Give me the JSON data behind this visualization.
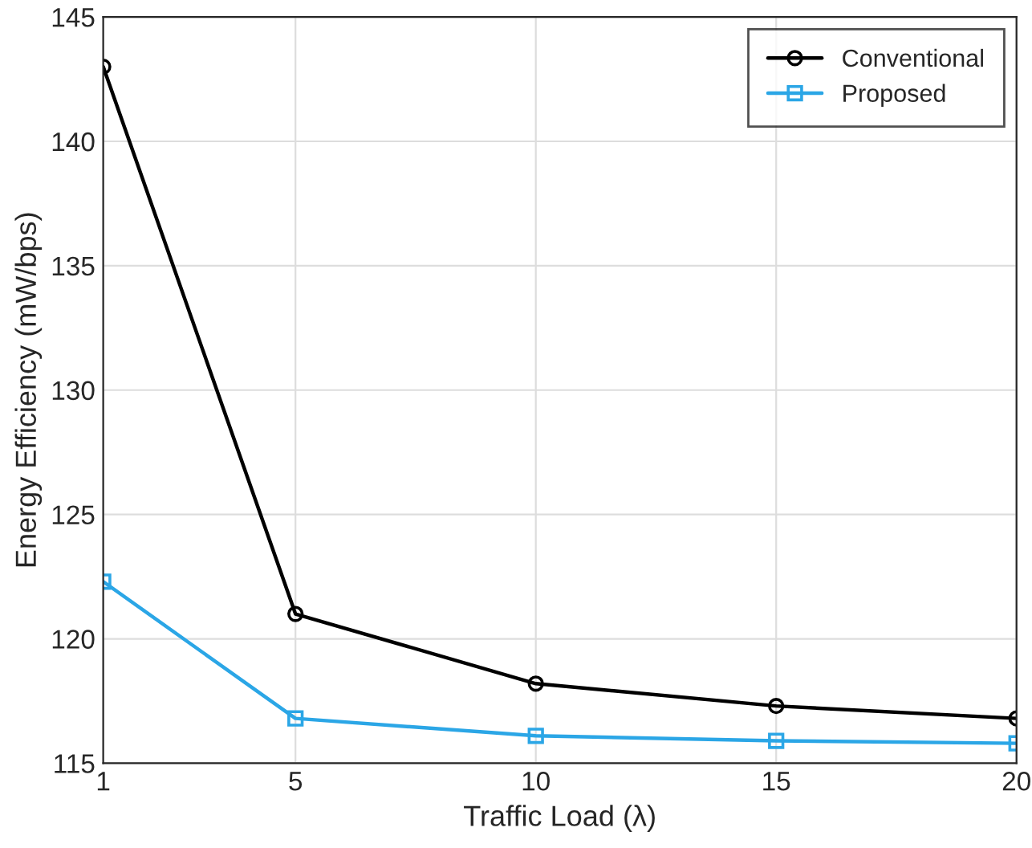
{
  "chart_data": {
    "type": "line",
    "xlabel": "Traffic Load (λ)",
    "ylabel": "Energy Efficiency (mW/bps)",
    "x": [
      1,
      5,
      10,
      15,
      20
    ],
    "series": [
      {
        "name": "Conventional",
        "color": "#000000",
        "marker": "circle",
        "values": [
          143.0,
          121.0,
          118.2,
          117.3,
          116.8
        ]
      },
      {
        "name": "Proposed",
        "color": "#2ba6e6",
        "marker": "square",
        "values": [
          122.3,
          116.8,
          116.1,
          115.9,
          115.8
        ]
      }
    ],
    "xlim": [
      1,
      20
    ],
    "xticks": [
      1,
      5,
      10,
      15,
      20
    ],
    "ylim": [
      115,
      145
    ],
    "yticks": [
      115,
      120,
      125,
      130,
      135,
      140,
      145
    ],
    "grid": true,
    "legend": "top right",
    "line_style": "solid"
  }
}
